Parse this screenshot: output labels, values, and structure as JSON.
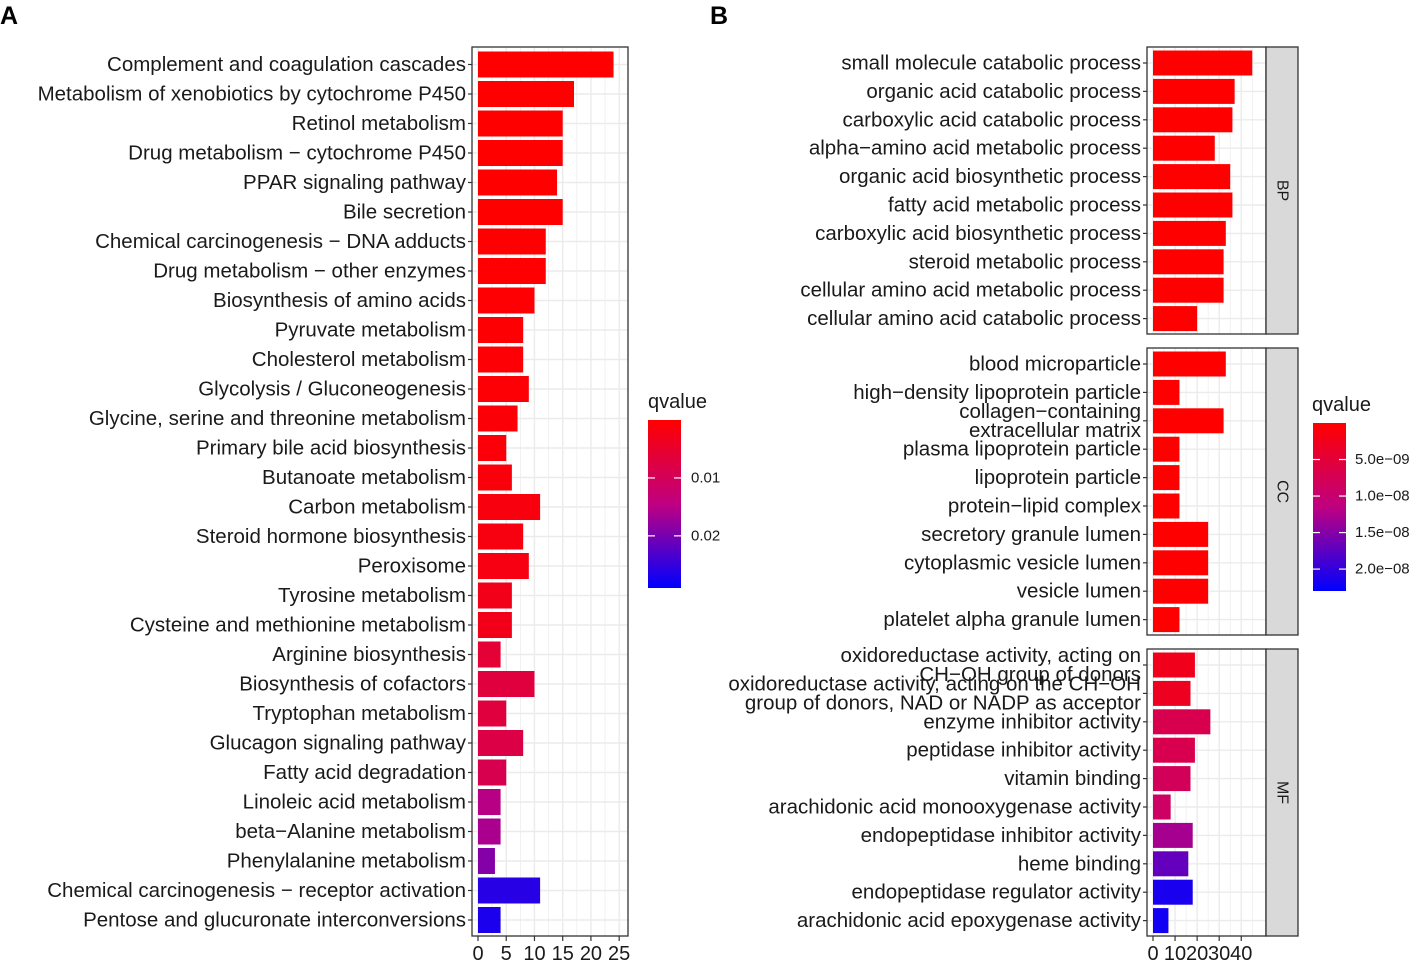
{
  "panels": [
    {
      "letter": "A"
    },
    {
      "letter": "B"
    }
  ],
  "chart_data": [
    {
      "type": "bar",
      "orientation": "horizontal",
      "panel": "A",
      "categories": [
        "Complement and coagulation cascades",
        "Metabolism of xenobiotics by cytochrome P450",
        "Retinol metabolism",
        "Drug metabolism − cytochrome P450",
        "PPAR signaling pathway",
        "Bile secretion",
        "Chemical carcinogenesis − DNA adducts",
        "Drug metabolism − other enzymes",
        "Biosynthesis of amino acids",
        "Pyruvate metabolism",
        "Cholesterol metabolism",
        "Glycolysis / Gluconeogenesis",
        "Glycine, serine and threonine metabolism",
        "Primary bile acid biosynthesis",
        "Butanoate metabolism",
        "Carbon metabolism",
        "Steroid hormone biosynthesis",
        "Peroxisome",
        "Tyrosine metabolism",
        "Cysteine and methionine metabolism",
        "Arginine biosynthesis",
        "Biosynthesis of cofactors",
        "Tryptophan metabolism",
        "Glucagon signaling pathway",
        "Fatty acid degradation",
        "Linoleic acid metabolism",
        "beta−Alanine metabolism",
        "Phenylalanine metabolism",
        "Chemical carcinogenesis − receptor activation",
        "Pentose and glucuronate interconversions"
      ],
      "values": [
        24,
        17,
        15,
        15,
        14,
        15,
        12,
        12,
        10,
        8,
        8,
        9,
        7,
        5,
        6,
        11,
        8,
        9,
        6,
        6,
        4,
        10,
        5,
        8,
        5,
        4,
        4,
        3,
        11,
        4
      ],
      "qvalues": [
        1e-05,
        2e-05,
        5e-05,
        5e-05,
        0.0001,
        0.0001,
        0.0002,
        0.0002,
        0.0003,
        0.0005,
        0.0006,
        0.0006,
        0.0008,
        0.001,
        0.0012,
        0.0015,
        0.0018,
        0.002,
        0.003,
        0.003,
        0.006,
        0.007,
        0.007,
        0.008,
        0.009,
        0.015,
        0.016,
        0.019,
        0.026,
        0.027
      ],
      "xticks": [
        0,
        5,
        10,
        15,
        20,
        25
      ],
      "xlim": [
        0,
        25.5
      ],
      "xlabel": "",
      "ylabel": "",
      "legend": {
        "title": "qvalue",
        "position": "right",
        "range": [
          0.0,
          0.029
        ],
        "ticks": [
          0.01,
          0.02
        ],
        "tick_labels": [
          "0.01",
          "0.02"
        ],
        "low_color": "#ff0000",
        "high_color": "#0000ff"
      }
    },
    {
      "type": "bar",
      "orientation": "horizontal",
      "panel": "B",
      "xticks": [
        0,
        10,
        20,
        30,
        40
      ],
      "xlim": [
        0,
        48.5
      ],
      "facets": [
        {
          "name": "BP",
          "categories": [
            "small molecule catabolic process",
            "organic acid catabolic process",
            "carboxylic acid catabolic process",
            "alpha−amino acid metabolic process",
            "organic acid biosynthetic process",
            "fatty acid metabolic process",
            "carboxylic acid biosynthetic process",
            "steroid metabolic process",
            "cellular amino acid metabolic process",
            "cellular amino acid catabolic process"
          ],
          "values": [
            45,
            37,
            36,
            28,
            35,
            36,
            33,
            32,
            32,
            20
          ],
          "qvalues": [
            1e-12,
            1e-12,
            1e-12,
            1e-12,
            1e-12,
            1e-12,
            1e-12,
            1e-12,
            1e-12,
            1e-12
          ]
        },
        {
          "name": "CC",
          "categories": [
            "blood microparticle",
            "high−density lipoprotein particle",
            "collagen−containing\nextracellular matrix",
            "plasma lipoprotein particle",
            "lipoprotein particle",
            "protein−lipid complex",
            "secretory granule lumen",
            "cytoplasmic vesicle lumen",
            "vesicle lumen",
            "platelet alpha granule lumen"
          ],
          "values": [
            33,
            12,
            32,
            12,
            12,
            12,
            25,
            25,
            25,
            12
          ],
          "qvalues": [
            1e-11,
            1e-11,
            1e-11,
            1e-11,
            1e-11,
            1e-11,
            1e-11,
            1e-11,
            1e-11,
            1e-11
          ]
        },
        {
          "name": "MF",
          "categories": [
            "oxidoreductase activity, acting on\nCH−OH group of donors",
            "oxidoreductase activity, acting on the CH−OH\ngroup of donors, NAD or NADP as acceptor",
            "enzyme inhibitor activity",
            "peptidase inhibitor activity",
            "vitamin binding",
            "arachidonic acid monooxygenase activity",
            "endopeptidase inhibitor activity",
            "heme binding",
            "endopeptidase regulator activity",
            "arachidonic acid epoxygenase activity"
          ],
          "values": [
            19,
            17,
            26,
            19,
            17,
            8,
            18,
            16,
            18,
            7
          ],
          "qvalues": [
            2.5e-09,
            3e-09,
            7e-09,
            7e-09,
            8e-09,
            9e-09,
            1.3e-08,
            1.7e-08,
            2.15e-08,
            2.2e-08
          ]
        }
      ],
      "legend": {
        "title": "qvalue",
        "position": "right",
        "range": [
          0.0,
          2.3e-08
        ],
        "ticks": [
          5e-09,
          1e-08,
          1.5e-08,
          2e-08
        ],
        "tick_labels": [
          "5.0e−09",
          "1.0e−08",
          "1.5e−08",
          "2.0e−08"
        ],
        "low_color": "#ff0000",
        "high_color": "#0000ff"
      }
    }
  ]
}
